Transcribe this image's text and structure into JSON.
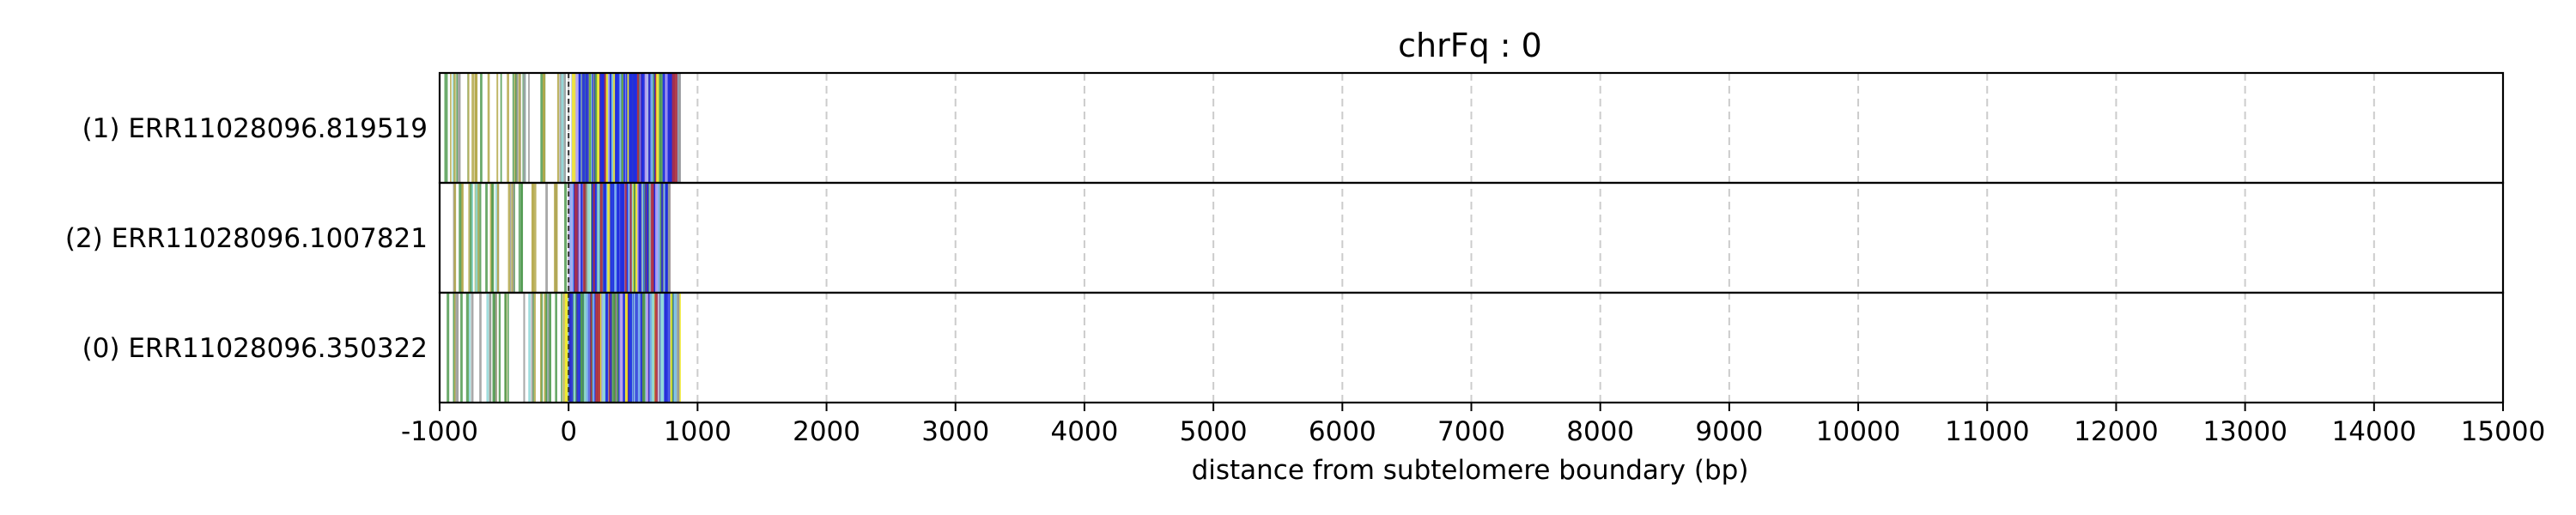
{
  "chart_data": {
    "type": "bar",
    "title": "chrFq : 0",
    "xlabel": "distance from subtelomere boundary (bp)",
    "ylabel": "",
    "xlim": [
      -1000,
      15000
    ],
    "x_ticks": [
      "-1000",
      "0",
      "1000",
      "2000",
      "3000",
      "4000",
      "5000",
      "6000",
      "7000",
      "8000",
      "9000",
      "10000",
      "11000",
      "12000",
      "13000",
      "14000",
      "15000"
    ],
    "grid": "vertical dashed",
    "boundary_marker_x": 0,
    "colors": {
      "blue": "#1f2ee0",
      "lightblue": "#7fb6f0",
      "cyan": "#8fd8d8",
      "green": "#4f9a4f",
      "olive": "#b4a84a",
      "yellow": "#f2ea2c",
      "purple": "#b8a6f2",
      "red": "#b03040",
      "gray": "#9a9a9a",
      "grid": "#cccccc"
    },
    "reads": [
      {
        "name": "(1) ERR11028096.819519",
        "start": -1000,
        "end": 860,
        "sparse_region": [
          -1000,
          20
        ],
        "dense_region": [
          20,
          860
        ]
      },
      {
        "name": "(2) ERR11028096.1007821",
        "start": -900,
        "end": 780,
        "sparse_region": [
          -900,
          0
        ],
        "dense_region": [
          0,
          780
        ]
      },
      {
        "name": "(0) ERR11028096.350322",
        "start": -950,
        "end": 850,
        "sparse_region": [
          -950,
          -30
        ],
        "dense_region": [
          -30,
          850
        ]
      }
    ]
  }
}
